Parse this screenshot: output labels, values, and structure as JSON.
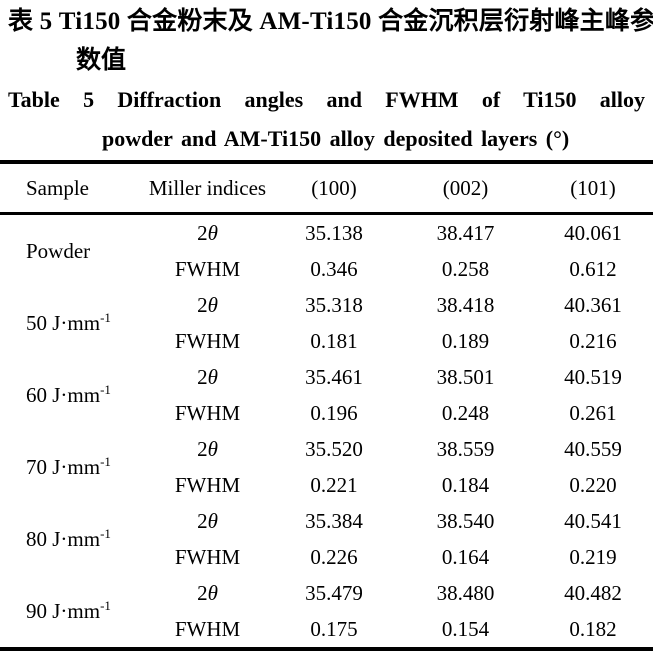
{
  "caption": {
    "zh_line1": "表 5  Ti150 合金粉末及 AM-Ti150 合金沉积层衍射峰主峰参",
    "zh_line2": "数值",
    "en_line1": "Table 5  Diffraction angles and FWHM of Ti150 alloy",
    "en_line2": "powder and AM-Ti150 alloy deposited layers (°)"
  },
  "table": {
    "headers": {
      "sample": "Sample",
      "miller": "Miller indices",
      "c100": "(100)",
      "c002": "(002)",
      "c101": "(101)"
    },
    "groups": [
      {
        "sample_text": "Powder",
        "sample_sup": "",
        "rows": [
          {
            "metric_roman": "2",
            "metric_italic": "θ",
            "values": [
              "35.138",
              "38.417",
              "40.061"
            ]
          },
          {
            "metric_roman": "FWHM",
            "metric_italic": "",
            "values": [
              "0.346",
              "0.258",
              "0.612"
            ]
          }
        ]
      },
      {
        "sample_text": "50 J·mm",
        "sample_sup": "-1",
        "rows": [
          {
            "metric_roman": "2",
            "metric_italic": "θ",
            "values": [
              "35.318",
              "38.418",
              "40.361"
            ]
          },
          {
            "metric_roman": "FWHM",
            "metric_italic": "",
            "values": [
              "0.181",
              "0.189",
              "0.216"
            ]
          }
        ]
      },
      {
        "sample_text": "60 J·mm",
        "sample_sup": "-1",
        "rows": [
          {
            "metric_roman": "2",
            "metric_italic": "θ",
            "values": [
              "35.461",
              "38.501",
              "40.519"
            ]
          },
          {
            "metric_roman": "FWHM",
            "metric_italic": "",
            "values": [
              "0.196",
              "0.248",
              "0.261"
            ]
          }
        ]
      },
      {
        "sample_text": "70 J·mm",
        "sample_sup": "-1",
        "rows": [
          {
            "metric_roman": "2",
            "metric_italic": "θ",
            "values": [
              "35.520",
              "38.559",
              "40.559"
            ]
          },
          {
            "metric_roman": "FWHM",
            "metric_italic": "",
            "values": [
              "0.221",
              "0.184",
              "0.220"
            ]
          }
        ]
      },
      {
        "sample_text": "80 J·mm",
        "sample_sup": "-1",
        "rows": [
          {
            "metric_roman": "2",
            "metric_italic": "θ",
            "values": [
              "35.384",
              "38.540",
              "40.541"
            ]
          },
          {
            "metric_roman": "FWHM",
            "metric_italic": "",
            "values": [
              "0.226",
              "0.164",
              "0.219"
            ]
          }
        ]
      },
      {
        "sample_text": "90 J·mm",
        "sample_sup": "-1",
        "rows": [
          {
            "metric_roman": "2",
            "metric_italic": "θ",
            "values": [
              "35.479",
              "38.480",
              "40.482"
            ]
          },
          {
            "metric_roman": "FWHM",
            "metric_italic": "",
            "values": [
              "0.175",
              "0.154",
              "0.182"
            ]
          }
        ]
      }
    ]
  },
  "chart_data": {
    "type": "table",
    "title": "Table 5 Diffraction angles and FWHM of Ti150 alloy powder and AM-Ti150 alloy deposited layers (°)",
    "columns": [
      "Sample",
      "Miller indices",
      "(100)",
      "(002)",
      "(101)"
    ],
    "rows": [
      [
        "Powder",
        "2θ",
        35.138,
        38.417,
        40.061
      ],
      [
        "Powder",
        "FWHM",
        0.346,
        0.258,
        0.612
      ],
      [
        "50 J·mm⁻¹",
        "2θ",
        35.318,
        38.418,
        40.361
      ],
      [
        "50 J·mm⁻¹",
        "FWHM",
        0.181,
        0.189,
        0.216
      ],
      [
        "60 J·mm⁻¹",
        "2θ",
        35.461,
        38.501,
        40.519
      ],
      [
        "60 J·mm⁻¹",
        "FWHM",
        0.196,
        0.248,
        0.261
      ],
      [
        "70 J·mm⁻¹",
        "2θ",
        35.52,
        38.559,
        40.559
      ],
      [
        "70 J·mm⁻¹",
        "FWHM",
        0.221,
        0.184,
        0.22
      ],
      [
        "80 J·mm⁻¹",
        "2θ",
        35.384,
        38.54,
        40.541
      ],
      [
        "80 J·mm⁻¹",
        "FWHM",
        0.226,
        0.164,
        0.219
      ],
      [
        "90 J·mm⁻¹",
        "2θ",
        35.479,
        38.48,
        40.482
      ],
      [
        "90 J·mm⁻¹",
        "FWHM",
        0.175,
        0.154,
        0.182
      ]
    ]
  }
}
